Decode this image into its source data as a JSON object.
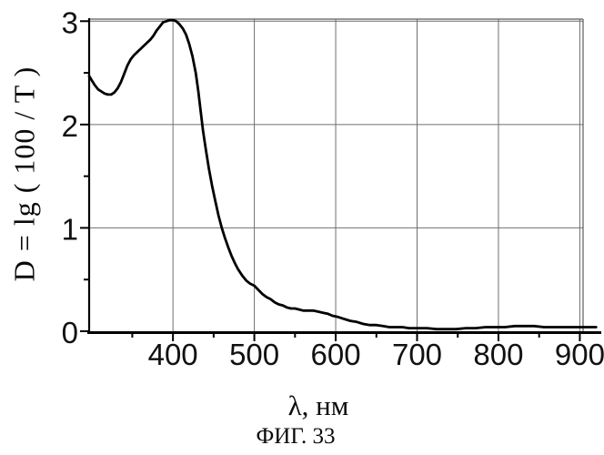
{
  "figure": {
    "background": "#ffffff",
    "curve_color": "#000000",
    "grid_color": "#6f6f6f",
    "axis_color": "#000000",
    "tick_label_color": "#111111"
  },
  "chart_data": {
    "type": "line",
    "title": "",
    "xlabel": "λ, нм",
    "ylabel": "D = lg ( 100 / T )",
    "caption": "ФИГ. 33",
    "xlim": [
      297,
      904
    ],
    "ylim": [
      0,
      3.02
    ],
    "x_ticks_major": [
      400,
      500,
      600,
      700,
      800,
      900
    ],
    "x_ticks_minor": [
      350,
      450,
      550,
      650,
      750,
      850
    ],
    "y_ticks_major": [
      0,
      1,
      2,
      3
    ],
    "y_ticks_minor": [
      0.5,
      1.5,
      2.5
    ],
    "grid": true,
    "legend": "none",
    "series": [
      {
        "name": "absorption-spectrum",
        "points": [
          [
            297,
            2.47
          ],
          [
            300,
            2.43
          ],
          [
            304,
            2.38
          ],
          [
            308,
            2.34
          ],
          [
            312,
            2.32
          ],
          [
            316,
            2.3
          ],
          [
            320,
            2.29
          ],
          [
            324,
            2.29
          ],
          [
            328,
            2.31
          ],
          [
            332,
            2.35
          ],
          [
            336,
            2.41
          ],
          [
            340,
            2.49
          ],
          [
            344,
            2.57
          ],
          [
            348,
            2.63
          ],
          [
            352,
            2.67
          ],
          [
            356,
            2.7
          ],
          [
            360,
            2.73
          ],
          [
            364,
            2.76
          ],
          [
            368,
            2.79
          ],
          [
            372,
            2.82
          ],
          [
            376,
            2.86
          ],
          [
            380,
            2.91
          ],
          [
            384,
            2.95
          ],
          [
            388,
            2.99
          ],
          [
            392,
            3.0
          ],
          [
            396,
            3.01
          ],
          [
            400,
            3.01
          ],
          [
            404,
            3.0
          ],
          [
            408,
            2.97
          ],
          [
            412,
            2.93
          ],
          [
            416,
            2.87
          ],
          [
            420,
            2.78
          ],
          [
            424,
            2.66
          ],
          [
            428,
            2.5
          ],
          [
            431,
            2.33
          ],
          [
            434,
            2.13
          ],
          [
            437,
            1.94
          ],
          [
            440,
            1.78
          ],
          [
            444,
            1.58
          ],
          [
            448,
            1.41
          ],
          [
            452,
            1.26
          ],
          [
            456,
            1.12
          ],
          [
            460,
            1.0
          ],
          [
            464,
            0.9
          ],
          [
            468,
            0.81
          ],
          [
            472,
            0.73
          ],
          [
            476,
            0.66
          ],
          [
            480,
            0.6
          ],
          [
            485,
            0.54
          ],
          [
            490,
            0.49
          ],
          [
            495,
            0.46
          ],
          [
            500,
            0.44
          ],
          [
            505,
            0.4
          ],
          [
            510,
            0.36
          ],
          [
            515,
            0.33
          ],
          [
            520,
            0.31
          ],
          [
            525,
            0.28
          ],
          [
            530,
            0.26
          ],
          [
            535,
            0.25
          ],
          [
            540,
            0.23
          ],
          [
            545,
            0.22
          ],
          [
            550,
            0.22
          ],
          [
            555,
            0.21
          ],
          [
            560,
            0.2
          ],
          [
            566,
            0.2
          ],
          [
            572,
            0.2
          ],
          [
            578,
            0.19
          ],
          [
            584,
            0.18
          ],
          [
            590,
            0.17
          ],
          [
            596,
            0.15
          ],
          [
            602,
            0.14
          ],
          [
            610,
            0.12
          ],
          [
            618,
            0.1
          ],
          [
            626,
            0.09
          ],
          [
            634,
            0.07
          ],
          [
            642,
            0.06
          ],
          [
            650,
            0.06
          ],
          [
            658,
            0.05
          ],
          [
            666,
            0.04
          ],
          [
            674,
            0.04
          ],
          [
            682,
            0.04
          ],
          [
            690,
            0.03
          ],
          [
            700,
            0.03
          ],
          [
            712,
            0.03
          ],
          [
            724,
            0.02
          ],
          [
            736,
            0.02
          ],
          [
            748,
            0.02
          ],
          [
            760,
            0.03
          ],
          [
            772,
            0.03
          ],
          [
            784,
            0.04
          ],
          [
            796,
            0.04
          ],
          [
            808,
            0.04
          ],
          [
            820,
            0.05
          ],
          [
            832,
            0.05
          ],
          [
            844,
            0.05
          ],
          [
            856,
            0.04
          ],
          [
            868,
            0.04
          ],
          [
            880,
            0.04
          ],
          [
            892,
            0.04
          ],
          [
            904,
            0.04
          ],
          [
            920,
            0.04
          ]
        ]
      }
    ]
  }
}
